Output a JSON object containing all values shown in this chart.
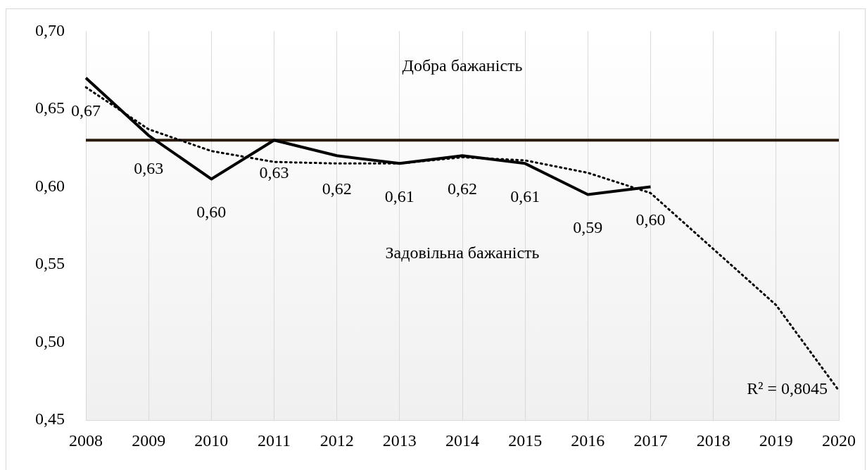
{
  "chart_data": {
    "type": "line",
    "categories": [
      "2008",
      "2009",
      "2010",
      "2011",
      "2012",
      "2013",
      "2014",
      "2015",
      "2016",
      "2017",
      "2018",
      "2019",
      "2020"
    ],
    "series": [
      {
        "color": "#000000",
        "values": [
          0.67,
          0.633,
          0.605,
          0.63,
          0.62,
          0.615,
          0.62,
          0.615,
          0.595,
          0.6,
          null,
          null,
          null
        ],
        "value_labels": [
          "0,67",
          "0,63",
          "0,60",
          "0,63",
          "0,62",
          "0,61",
          "0,62",
          "0,61",
          "0,59",
          "0,60",
          null,
          null,
          null
        ]
      },
      {
        "type": "line",
        "line_style": "dotted",
        "color": "#000000",
        "values": [
          0.664,
          0.637,
          0.623,
          0.616,
          0.615,
          0.615,
          0.619,
          0.617,
          0.609,
          0.596,
          0.56,
          0.524,
          0.469
        ]
      }
    ],
    "ylim": [
      0.45,
      0.7
    ],
    "yticks": [
      {
        "value": 0.45,
        "label": "0,45"
      },
      {
        "value": 0.5,
        "label": "0,50"
      },
      {
        "value": 0.55,
        "label": "0,55"
      },
      {
        "value": 0.6,
        "label": "0,60"
      },
      {
        "value": 0.65,
        "label": "0,65"
      },
      {
        "value": 0.7,
        "label": "0,70"
      }
    ],
    "ref_lines": [
      {
        "axis": "y",
        "value": 0.63,
        "color": "#2b1a0a"
      }
    ],
    "annotations": [
      "Добра бажаність",
      "Задовільна бажаність",
      "R² = 0,8045"
    ],
    "grid": "x",
    "legend": false,
    "marker": "none",
    "line_style": "solid"
  }
}
